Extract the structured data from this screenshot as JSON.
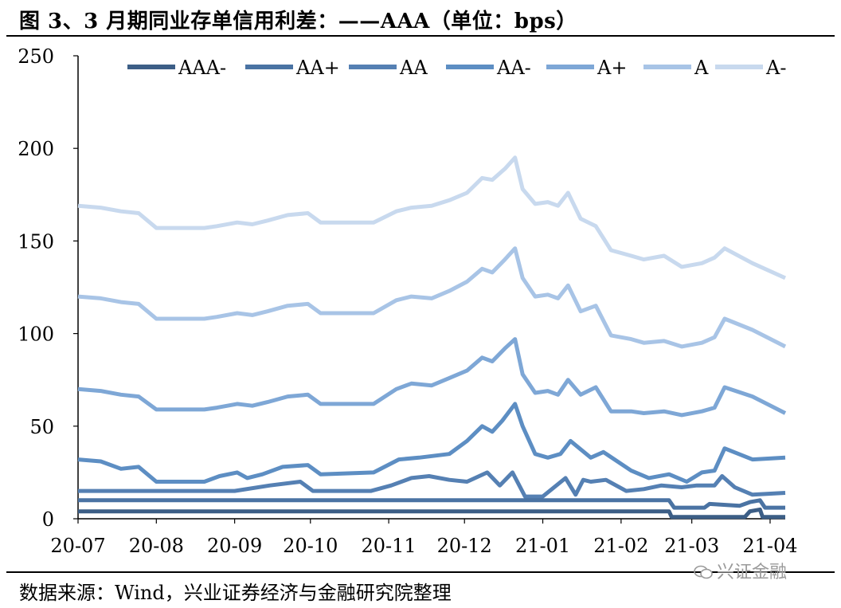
{
  "header": {
    "title": "图 3、3 月期同业存单信用利差：——AAA（单位：bps）"
  },
  "footer": {
    "source": "数据来源：Wind，兴业证券经济与金融研究院整理",
    "watermark": "兴证金融"
  },
  "chart_data": {
    "type": "line",
    "title": "3 月期同业存单信用利差：——AAA（单位：bps）",
    "xlabel": "",
    "ylabel": "",
    "ylim": [
      0,
      250
    ],
    "yticks": [
      0,
      50,
      100,
      150,
      200,
      250
    ],
    "xlim": [
      "2020-07-01",
      "2021-04-07"
    ],
    "xticks": [
      "2020-07-01",
      "2020-08-01",
      "2020-09-01",
      "2020-10-01",
      "2020-11-01",
      "2020-12-01",
      "2021-01-01",
      "2021-02-01",
      "2021-03-01",
      "2021-04-01"
    ],
    "xtick_labels": [
      "20-07",
      "20-08",
      "20-09",
      "20-10",
      "20-11",
      "20-12",
      "21-01",
      "21-02",
      "21-03",
      "21-04"
    ],
    "legend_position": "top",
    "grid": false,
    "series": [
      {
        "name": "AAA-",
        "color": "#3c5e86",
        "x": [
          "2020-07-01",
          "2021-02-20",
          "2021-02-21",
          "2021-03-22",
          "2021-03-24",
          "2021-03-28",
          "2021-03-29",
          "2021-04-07"
        ],
        "y": [
          4,
          4,
          1,
          1,
          4,
          5,
          1,
          1
        ]
      },
      {
        "name": "AA+",
        "color": "#4a73a3",
        "x": [
          "2020-07-01",
          "2021-02-20",
          "2021-02-22",
          "2021-03-06",
          "2021-03-08",
          "2021-03-20",
          "2021-03-24",
          "2021-03-28",
          "2021-03-30",
          "2021-04-07"
        ],
        "y": [
          10,
          10,
          6,
          6,
          8,
          7,
          9,
          10,
          6,
          6
        ]
      },
      {
        "name": "AA",
        "color": "#5580b3",
        "x": [
          "2020-07-01",
          "2020-09-01",
          "2020-09-15",
          "2020-09-27",
          "2020-10-02",
          "2020-10-25",
          "2020-11-02",
          "2020-11-10",
          "2020-11-17",
          "2020-11-25",
          "2020-12-02",
          "2020-12-10",
          "2020-12-15",
          "2020-12-20",
          "2020-12-25",
          "2021-01-01",
          "2021-01-10",
          "2021-01-14",
          "2021-01-17",
          "2021-01-20",
          "2021-01-26",
          "2021-02-03",
          "2021-02-10",
          "2021-02-17",
          "2021-02-25",
          "2021-03-03",
          "2021-03-10",
          "2021-03-13",
          "2021-03-18",
          "2021-03-25",
          "2021-04-07"
        ],
        "y": [
          15,
          15,
          18,
          20,
          15,
          15,
          18,
          22,
          23,
          21,
          20,
          25,
          18,
          25,
          12,
          12,
          22,
          13,
          21,
          20,
          21,
          15,
          16,
          18,
          17,
          18,
          18,
          23,
          17,
          13,
          14
        ]
      },
      {
        "name": "AA-",
        "color": "#5d8ec3",
        "x": [
          "2020-07-01",
          "2020-07-10",
          "2020-07-18",
          "2020-07-25",
          "2020-08-01",
          "2020-08-20",
          "2020-08-26",
          "2020-09-02",
          "2020-09-06",
          "2020-09-12",
          "2020-09-20",
          "2020-09-30",
          "2020-10-05",
          "2020-10-26",
          "2020-11-05",
          "2020-11-13",
          "2020-11-25",
          "2020-12-02",
          "2020-12-08",
          "2020-12-12",
          "2020-12-16",
          "2020-12-21",
          "2020-12-24",
          "2020-12-29",
          "2021-01-03",
          "2021-01-08",
          "2021-01-12",
          "2021-01-20",
          "2021-01-25",
          "2021-02-05",
          "2021-02-12",
          "2021-02-20",
          "2021-02-27",
          "2021-03-05",
          "2021-03-10",
          "2021-03-14",
          "2021-03-25",
          "2021-04-07"
        ],
        "y": [
          32,
          31,
          27,
          28,
          20,
          20,
          23,
          25,
          22,
          24,
          28,
          29,
          24,
          25,
          32,
          33,
          35,
          42,
          50,
          47,
          53,
          62,
          50,
          35,
          33,
          35,
          42,
          33,
          36,
          26,
          22,
          24,
          20,
          25,
          26,
          38,
          32,
          33
        ]
      },
      {
        "name": "A+",
        "color": "#7ea7d6",
        "x": [
          "2020-07-01",
          "2020-07-10",
          "2020-07-18",
          "2020-07-25",
          "2020-08-01",
          "2020-08-20",
          "2020-08-25",
          "2020-09-02",
          "2020-09-08",
          "2020-09-14",
          "2020-09-22",
          "2020-09-30",
          "2020-10-05",
          "2020-10-26",
          "2020-11-04",
          "2020-11-10",
          "2020-11-18",
          "2020-11-25",
          "2020-12-02",
          "2020-12-08",
          "2020-12-12",
          "2020-12-17",
          "2020-12-21",
          "2020-12-24",
          "2020-12-29",
          "2021-01-03",
          "2021-01-07",
          "2021-01-11",
          "2021-01-16",
          "2021-01-22",
          "2021-01-28",
          "2021-02-05",
          "2021-02-10",
          "2021-02-18",
          "2021-02-25",
          "2021-03-05",
          "2021-03-10",
          "2021-03-14",
          "2021-03-25",
          "2021-04-07"
        ],
        "y": [
          70,
          69,
          67,
          66,
          59,
          59,
          60,
          62,
          61,
          63,
          66,
          67,
          62,
          62,
          70,
          73,
          72,
          76,
          80,
          87,
          85,
          92,
          97,
          78,
          68,
          69,
          67,
          75,
          67,
          71,
          58,
          58,
          57,
          58,
          56,
          58,
          60,
          71,
          66,
          57
        ]
      },
      {
        "name": "A",
        "color": "#a8c4e6",
        "x": [
          "2020-07-01",
          "2020-07-10",
          "2020-07-18",
          "2020-07-25",
          "2020-08-01",
          "2020-08-20",
          "2020-08-25",
          "2020-09-02",
          "2020-09-08",
          "2020-09-14",
          "2020-09-22",
          "2020-09-30",
          "2020-10-05",
          "2020-10-26",
          "2020-11-04",
          "2020-11-10",
          "2020-11-18",
          "2020-11-25",
          "2020-12-02",
          "2020-12-08",
          "2020-12-12",
          "2020-12-17",
          "2020-12-21",
          "2020-12-24",
          "2020-12-29",
          "2021-01-03",
          "2021-01-07",
          "2021-01-11",
          "2021-01-16",
          "2021-01-22",
          "2021-01-28",
          "2021-02-05",
          "2021-02-10",
          "2021-02-18",
          "2021-02-25",
          "2021-03-05",
          "2021-03-10",
          "2021-03-14",
          "2021-03-25",
          "2021-04-07"
        ],
        "y": [
          120,
          119,
          117,
          116,
          108,
          108,
          109,
          111,
          110,
          112,
          115,
          116,
          111,
          111,
          118,
          120,
          119,
          123,
          128,
          135,
          133,
          140,
          146,
          130,
          120,
          121,
          119,
          126,
          112,
          115,
          99,
          97,
          95,
          96,
          93,
          95,
          98,
          108,
          102,
          93
        ]
      },
      {
        "name": "A-",
        "color": "#c8d9ee",
        "x": [
          "2020-07-01",
          "2020-07-10",
          "2020-07-18",
          "2020-07-25",
          "2020-08-01",
          "2020-08-20",
          "2020-08-25",
          "2020-09-02",
          "2020-09-08",
          "2020-09-14",
          "2020-09-22",
          "2020-09-30",
          "2020-10-05",
          "2020-10-26",
          "2020-11-04",
          "2020-11-10",
          "2020-11-18",
          "2020-11-25",
          "2020-12-02",
          "2020-12-08",
          "2020-12-12",
          "2020-12-17",
          "2020-12-21",
          "2020-12-24",
          "2020-12-29",
          "2021-01-03",
          "2021-01-07",
          "2021-01-11",
          "2021-01-16",
          "2021-01-22",
          "2021-01-28",
          "2021-02-05",
          "2021-02-10",
          "2021-02-18",
          "2021-02-25",
          "2021-03-05",
          "2021-03-10",
          "2021-03-14",
          "2021-03-25",
          "2021-04-07"
        ],
        "y": [
          169,
          168,
          166,
          165,
          157,
          157,
          158,
          160,
          159,
          161,
          164,
          165,
          160,
          160,
          166,
          168,
          169,
          172,
          176,
          184,
          183,
          189,
          195,
          178,
          170,
          171,
          169,
          176,
          162,
          158,
          145,
          142,
          140,
          142,
          136,
          138,
          141,
          146,
          138,
          130
        ]
      }
    ]
  }
}
